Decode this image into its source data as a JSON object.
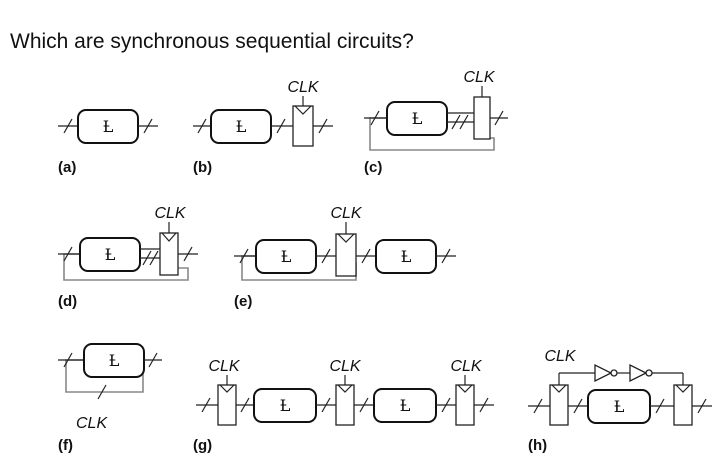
{
  "question": "Which are synchronous sequential circuits?",
  "clk_label": "CLK",
  "logic_symbol": "Ƚ",
  "panels": {
    "a": "(a)",
    "b": "(b)",
    "c": "(c)",
    "d": "(d)",
    "e": "(e)",
    "f": "(f)",
    "g": "(g)",
    "h": "(h)"
  }
}
